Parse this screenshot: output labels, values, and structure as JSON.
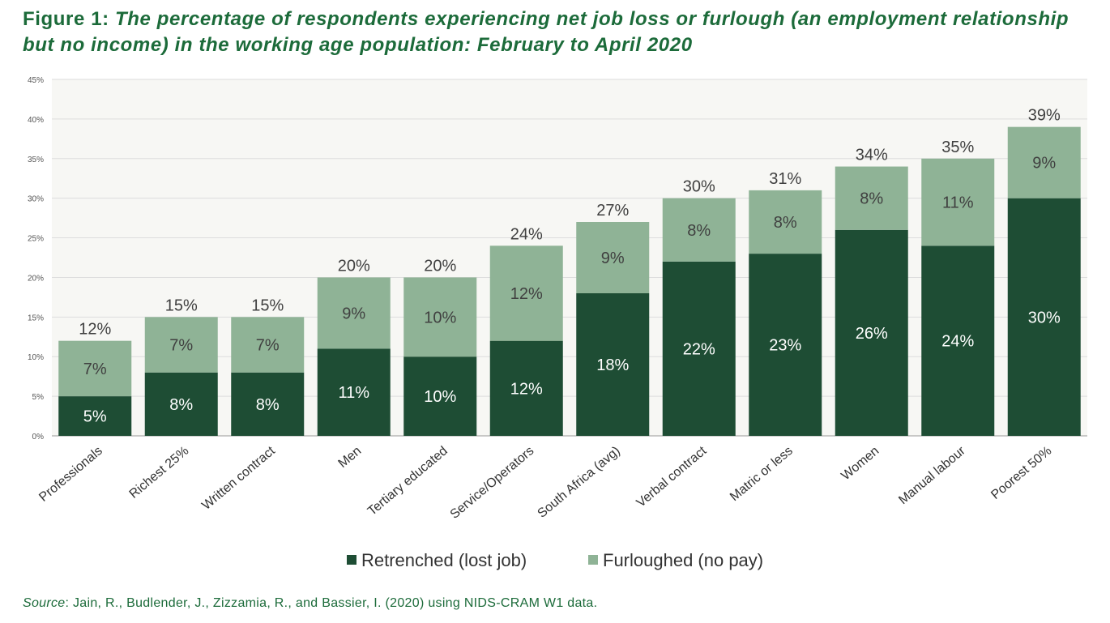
{
  "header": {
    "figure_label": "Figure 1:",
    "title": "The percentage of respondents experiencing net job loss or furlough (an employment relationship but no income) in the working age population: February to April 2020"
  },
  "footer": {
    "source_label": "Source",
    "source_text": ": Jain, R., Budlender, J., Zizzamia, R., and Bassier, I. (2020) using NIDS-CRAM W1 data."
  },
  "colors": {
    "retrenched": "#1e4d34",
    "furloughed": "#8fb396",
    "title": "#1c6b3a",
    "grid": "#dddddd",
    "plot_bg": "#f7f7f4"
  },
  "chart_data": {
    "type": "bar",
    "stacked": true,
    "categories": [
      "Professionals",
      "Richest 25%",
      "Written contract",
      "Men",
      "Tertiary educated",
      "Service/Operators",
      "South Africa (avg)",
      "Verbal contract",
      "Matric or less",
      "Women",
      "Manual labour",
      "Poorest 50%"
    ],
    "series": [
      {
        "name": "Retrenched (lost job)",
        "values": [
          5,
          8,
          8,
          11,
          10,
          12,
          18,
          22,
          23,
          26,
          24,
          30
        ]
      },
      {
        "name": "Furloughed (no pay)",
        "values": [
          7,
          7,
          7,
          9,
          10,
          12,
          9,
          8,
          8,
          8,
          11,
          9
        ]
      }
    ],
    "totals": [
      12,
      15,
      15,
      20,
      20,
      24,
      27,
      30,
      31,
      34,
      35,
      39
    ],
    "y_ticks": [
      "0%",
      "5%",
      "10%",
      "15%",
      "20%",
      "25%",
      "30%",
      "35%",
      "40%",
      "45%"
    ],
    "ylim": [
      0,
      45
    ],
    "value_suffix": "%",
    "grid": true,
    "legend_position": "bottom"
  }
}
